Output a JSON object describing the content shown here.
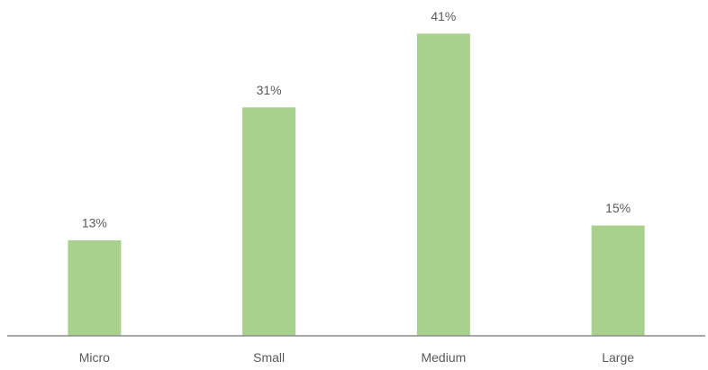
{
  "chart_data": {
    "type": "bar",
    "categories": [
      "Micro",
      "Small",
      "Medium",
      "Large"
    ],
    "values": [
      13,
      31,
      41,
      15
    ],
    "data_labels": [
      "13%",
      "31%",
      "41%",
      "15%"
    ],
    "unit": "%",
    "ylim": [
      0,
      45
    ],
    "grid": false,
    "legend": "none",
    "colors": {
      "bar": "#a9d18e",
      "axis": "#8c8c8c",
      "text": "#595959"
    }
  }
}
